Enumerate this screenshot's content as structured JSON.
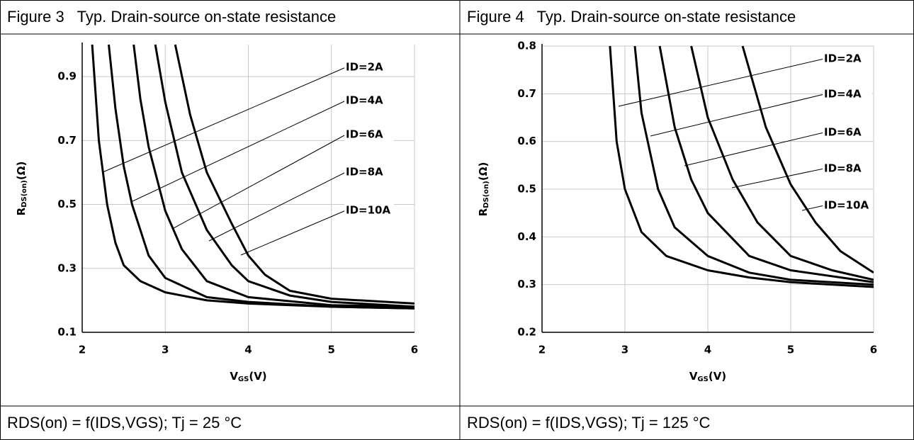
{
  "chart_data": [
    {
      "type": "line",
      "title": "Figure 3   Typ. Drain-source on-state resistance",
      "caption": "RDS(on) = f(IDS,VGS); Tj = 25 °C",
      "xlabel": [
        "V",
        "GS",
        "(V)"
      ],
      "ylabel": [
        "R",
        "DS(on)",
        "(Ω)"
      ],
      "xlim": [
        2,
        6
      ],
      "xticks": [
        2,
        3,
        4,
        5,
        6
      ],
      "ylim": [
        0.1,
        1.0
      ],
      "yticks": [
        0.1,
        0.3,
        0.5,
        0.7,
        0.9
      ],
      "grid": true,
      "series": [
        {
          "name": "ID=2A",
          "color": "#000000",
          "x": [
            2.12,
            2.2,
            2.3,
            2.4,
            2.5,
            2.7,
            3,
            3.5,
            4,
            5,
            6
          ],
          "values": [
            1.0,
            0.7,
            0.5,
            0.38,
            0.31,
            0.26,
            0.225,
            0.2,
            0.19,
            0.18,
            0.175
          ]
        },
        {
          "name": "ID=4A",
          "color": "#000000",
          "x": [
            2.32,
            2.4,
            2.5,
            2.6,
            2.8,
            3,
            3.5,
            4,
            5,
            6
          ],
          "values": [
            1.0,
            0.8,
            0.62,
            0.5,
            0.34,
            0.27,
            0.21,
            0.195,
            0.18,
            0.175
          ]
        },
        {
          "name": "ID=6A",
          "color": "#000000",
          "x": [
            2.62,
            2.7,
            2.8,
            3,
            3.2,
            3.5,
            4,
            5,
            6
          ],
          "values": [
            1.0,
            0.83,
            0.68,
            0.48,
            0.36,
            0.26,
            0.21,
            0.185,
            0.18
          ]
        },
        {
          "name": "ID=8A",
          "color": "#000000",
          "x": [
            2.88,
            3,
            3.2,
            3.5,
            3.8,
            4,
            4.5,
            5,
            6
          ],
          "values": [
            1.0,
            0.82,
            0.6,
            0.42,
            0.31,
            0.26,
            0.215,
            0.195,
            0.18
          ]
        },
        {
          "name": "ID=10A",
          "color": "#000000",
          "x": [
            3.12,
            3.3,
            3.5,
            3.8,
            4,
            4.2,
            4.5,
            5,
            6
          ],
          "values": [
            1.0,
            0.78,
            0.6,
            0.44,
            0.34,
            0.28,
            0.23,
            0.205,
            0.19
          ]
        }
      ]
    },
    {
      "type": "line",
      "title": "Figure 4   Typ. Drain-source on-state resistance",
      "caption": "RDS(on) = f(IDS,VGS); Tj = 125 °C",
      "xlabel": [
        "V",
        "GS",
        "(V)"
      ],
      "ylabel": [
        "R",
        "DS(on)",
        "(Ω)"
      ],
      "xlim": [
        2,
        6
      ],
      "xticks": [
        2,
        3,
        4,
        5,
        6
      ],
      "ylim": [
        0.2,
        0.8
      ],
      "yticks": [
        0.2,
        0.3,
        0.4,
        0.5,
        0.6,
        0.7,
        0.8
      ],
      "grid": true,
      "series": [
        {
          "name": "ID=2A",
          "color": "#000000",
          "x": [
            2.82,
            2.9,
            3,
            3.2,
            3.5,
            4,
            4.5,
            5,
            6
          ],
          "values": [
            0.8,
            0.6,
            0.5,
            0.41,
            0.36,
            0.33,
            0.315,
            0.305,
            0.295
          ]
        },
        {
          "name": "ID=4A",
          "color": "#000000",
          "x": [
            3.12,
            3.2,
            3.4,
            3.6,
            4,
            4.5,
            5,
            6
          ],
          "values": [
            0.8,
            0.66,
            0.5,
            0.42,
            0.36,
            0.325,
            0.31,
            0.3
          ]
        },
        {
          "name": "ID=6A",
          "color": "#000000",
          "x": [
            3.42,
            3.6,
            3.8,
            4,
            4.5,
            5,
            6
          ],
          "values": [
            0.8,
            0.63,
            0.52,
            0.45,
            0.36,
            0.33,
            0.305
          ]
        },
        {
          "name": "ID=8A",
          "color": "#000000",
          "x": [
            3.8,
            4,
            4.3,
            4.6,
            5,
            5.5,
            6
          ],
          "values": [
            0.8,
            0.65,
            0.52,
            0.43,
            0.36,
            0.33,
            0.31
          ]
        },
        {
          "name": "ID=10A",
          "color": "#000000",
          "x": [
            4.42,
            4.7,
            5,
            5.3,
            5.6,
            6
          ],
          "values": [
            0.8,
            0.63,
            0.51,
            0.43,
            0.37,
            0.325
          ]
        }
      ]
    }
  ]
}
